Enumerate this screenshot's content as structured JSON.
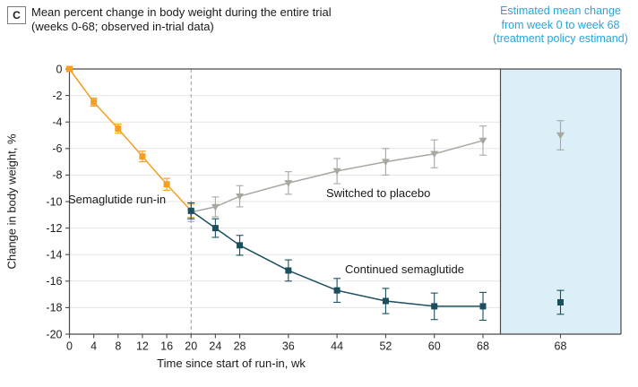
{
  "panel": {
    "label": "C",
    "title": "Mean percent change in body weight during the entire trial (weeks 0-68; observed in-trial data)"
  },
  "estimand_header": "Estimated mean change from week 0 to week 68 (treatment policy estimand)",
  "colors": {
    "axis": "#4a4a4a",
    "grid": "#e3e6e2",
    "dashed_line": "#999999",
    "tick_text": "#222222",
    "estimand_text": "#29A5D8",
    "orange": "#F49E25",
    "gray": "#A8A8A1",
    "teal": "#1C4F5E",
    "shaded_region": "#DCEEF8"
  },
  "chart_data": {
    "type": "line",
    "title": "Mean percent change in body weight during the entire trial (weeks 0-68; observed in-trial data)",
    "xlabel": "Time since start of run-in, wk",
    "ylabel": "Change in body weight, %",
    "ylim": [
      -20,
      0
    ],
    "xlim": [
      0,
      68
    ],
    "grid": "horizontal",
    "yticks": [
      0,
      -2,
      -4,
      -6,
      -8,
      -10,
      -12,
      -14,
      -16,
      -18,
      -20
    ],
    "xticks": [
      0,
      4,
      8,
      12,
      16,
      20,
      24,
      28,
      36,
      44,
      52,
      60,
      68
    ],
    "runin_end_week": 20,
    "series": [
      {
        "name": "Semaglutide run-in",
        "color": "#F49E25",
        "marker": "square",
        "x": [
          0,
          4,
          8,
          12,
          16,
          20
        ],
        "y": [
          0,
          -2.5,
          -4.5,
          -6.6,
          -8.7,
          -10.7
        ],
        "err": [
          0.2,
          0.3,
          0.35,
          0.4,
          0.45,
          0.5
        ]
      },
      {
        "name": "Switched to placebo",
        "color": "#A8A8A1",
        "marker": "triangle-down",
        "x": [
          20,
          24,
          28,
          36,
          44,
          52,
          60,
          68
        ],
        "y": [
          -10.8,
          -10.4,
          -9.6,
          -8.6,
          -7.7,
          -7.0,
          -6.4,
          -5.4
        ],
        "err": [
          0.7,
          0.75,
          0.8,
          0.85,
          0.95,
          1.0,
          1.05,
          1.1
        ]
      },
      {
        "name": "Continued semaglutide",
        "color": "#1C4F5E",
        "marker": "square",
        "x": [
          20,
          24,
          28,
          36,
          44,
          52,
          60,
          68
        ],
        "y": [
          -10.7,
          -12.0,
          -13.3,
          -15.2,
          -16.7,
          -17.5,
          -17.9,
          -17.9
        ],
        "err": [
          0.6,
          0.7,
          0.75,
          0.8,
          0.9,
          0.95,
          1.0,
          1.05
        ]
      }
    ],
    "estimand": {
      "x_label": "68",
      "region_color": "#DCEEF8",
      "points": [
        {
          "series": "Switched to placebo",
          "y": -5.0,
          "err": 1.1
        },
        {
          "series": "Continued semaglutide",
          "y": -17.6,
          "err": 0.9
        }
      ]
    }
  }
}
